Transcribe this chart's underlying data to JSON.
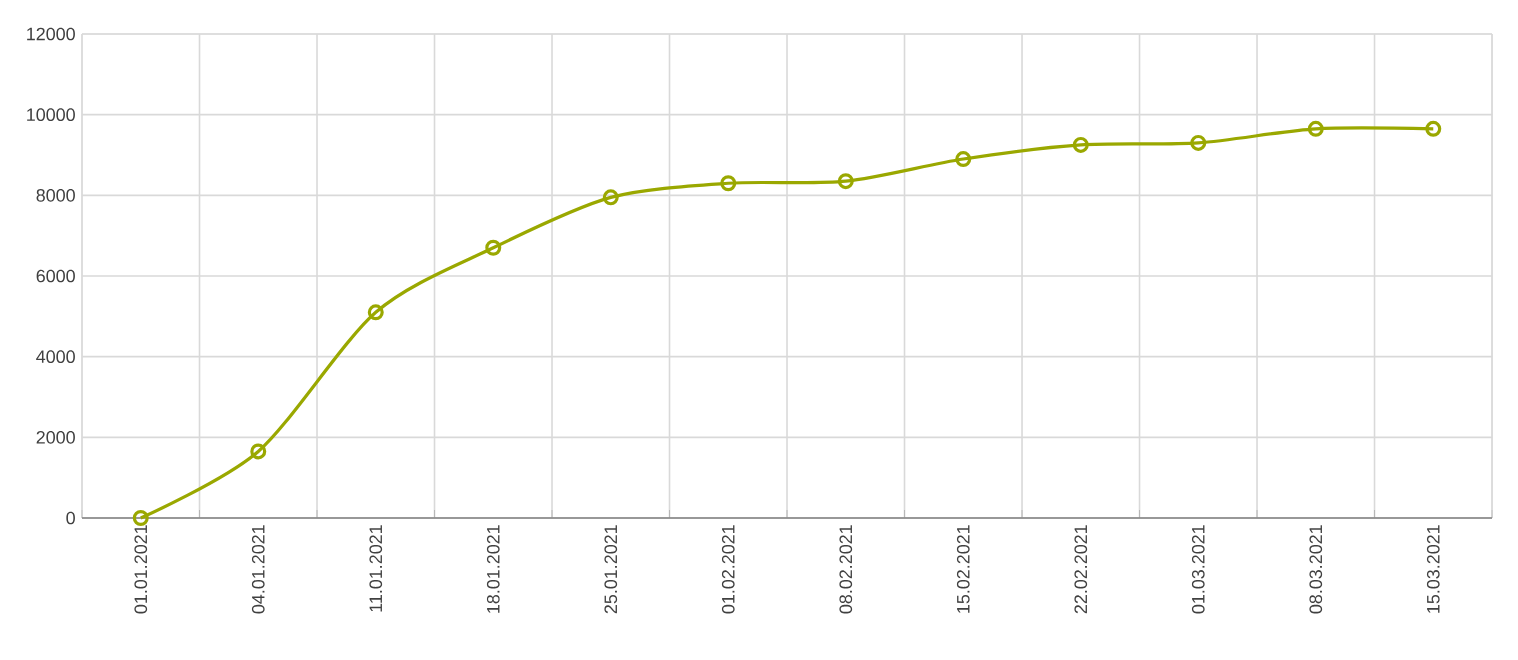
{
  "chart_data": {
    "type": "line",
    "categories": [
      "01.01.2021",
      "04.01.2021",
      "11.01.2021",
      "18.01.2021",
      "25.01.2021",
      "01.02.2021",
      "08.02.2021",
      "15.02.2021",
      "22.02.2021",
      "01.03.2021",
      "08.03.2021",
      "15.03.2021"
    ],
    "values": [
      0,
      1650,
      5100,
      6700,
      7950,
      8300,
      8350,
      8900,
      9250,
      9300,
      9650,
      9650
    ],
    "color": "#9aa800",
    "ylim": [
      0,
      12000
    ],
    "yticks": [
      0,
      2000,
      4000,
      6000,
      8000,
      10000,
      12000
    ],
    "grid": true,
    "marker": "circle",
    "line_style": "solid"
  }
}
